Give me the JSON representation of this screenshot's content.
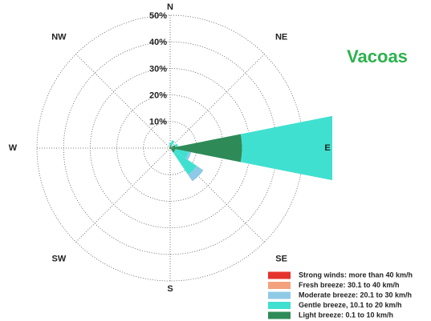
{
  "chart_data": {
    "type": "windrose",
    "title": "Vacoas",
    "categories": [
      "N",
      null,
      "NE",
      null,
      "E",
      null,
      "SE",
      null,
      "S",
      null,
      "SW",
      null,
      "W",
      null,
      "NW",
      null
    ],
    "rlim": [
      0,
      50
    ],
    "rticks": [
      {
        "value": 10,
        "label": "10%"
      },
      {
        "value": 20,
        "label": "20%"
      },
      {
        "value": 30,
        "label": "30%"
      },
      {
        "value": 40,
        "label": "40%"
      },
      {
        "value": 50,
        "label": "50%"
      }
    ],
    "series": [
      {
        "name": "Light breeze: 0.1 to 10 km/h",
        "color": "#2e8b57",
        "values": [
          1,
          1,
          0.5,
          2,
          27,
          2,
          2,
          0.5,
          0.5,
          0,
          0,
          0,
          0.5,
          0,
          0,
          0.5
        ]
      },
      {
        "name": "Gentle breeze, 10.1 to 20 km/h",
        "color": "#40e0d0",
        "values": [
          1,
          2,
          0,
          1,
          40,
          5,
          10,
          0,
          0,
          0,
          0,
          0,
          0,
          0,
          0,
          0
        ]
      },
      {
        "name": "Moderate breeze: 20.1 to 30 km/h",
        "color": "#8ecae6",
        "values": [
          0,
          0,
          0,
          0,
          0,
          1,
          3,
          0,
          0,
          0,
          0,
          0,
          0,
          0,
          0,
          0
        ]
      },
      {
        "name": "Fresh breeze: 30.1 to 40 km/h",
        "color": "#f4a27e",
        "values": [
          0,
          0,
          0,
          0,
          0,
          0,
          0,
          0,
          0,
          0,
          0,
          0,
          0,
          0,
          0,
          0
        ]
      },
      {
        "name": "Strong winds: more than 40 km/h",
        "color": "#e5322d",
        "values": [
          0,
          0,
          0,
          0,
          0,
          0,
          0,
          0,
          0,
          0,
          0,
          0,
          0,
          0,
          0,
          0
        ]
      }
    ]
  }
}
